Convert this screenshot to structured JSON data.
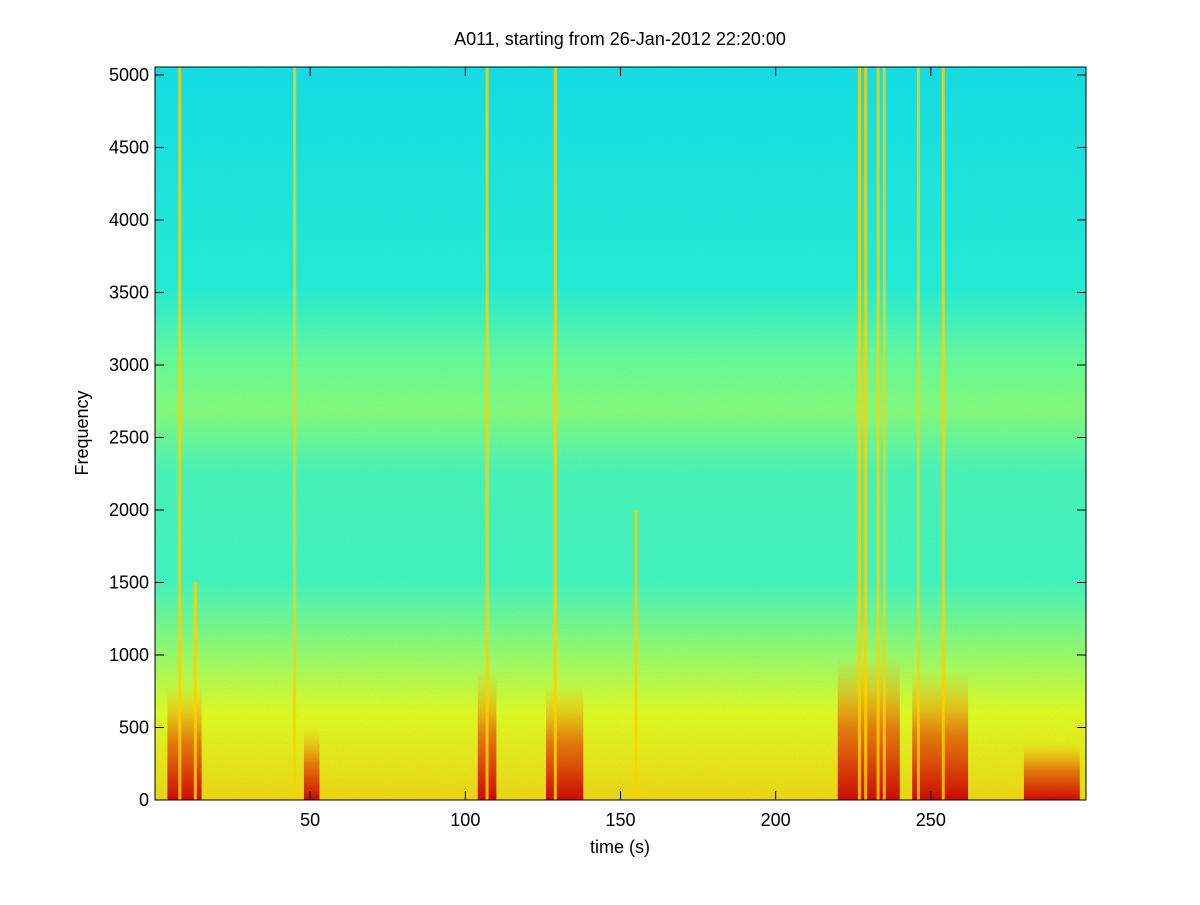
{
  "chart_data": {
    "type": "spectrogram",
    "title": "A011, starting from 26-Jan-2012 22:20:00",
    "xlabel": "time (s)",
    "ylabel": "Frequency",
    "xlim": [
      0,
      300
    ],
    "ylim": [
      0,
      5055
    ],
    "xticks": [
      50,
      100,
      150,
      200,
      250
    ],
    "yticks": [
      0,
      500,
      1000,
      1500,
      2000,
      2500,
      3000,
      3500,
      4000,
      4500,
      5000
    ],
    "streak_color": "#ffd000",
    "burst_color": "#d00000",
    "streaks": {
      "time": [
        8,
        13,
        45,
        107,
        129,
        155,
        227,
        229,
        233,
        235,
        246,
        254
      ],
      "top_freq": [
        5055,
        1500,
        5055,
        5055,
        5055,
        2000,
        5055,
        5055,
        5055,
        5055,
        5055,
        5055
      ]
    },
    "bursts": {
      "time_start": [
        4,
        48,
        104,
        126,
        220,
        244,
        280
      ],
      "time_end": [
        15,
        53,
        110,
        138,
        240,
        262,
        298
      ],
      "top_freq": [
        800,
        500,
        900,
        800,
        1000,
        900,
        400
      ]
    }
  }
}
